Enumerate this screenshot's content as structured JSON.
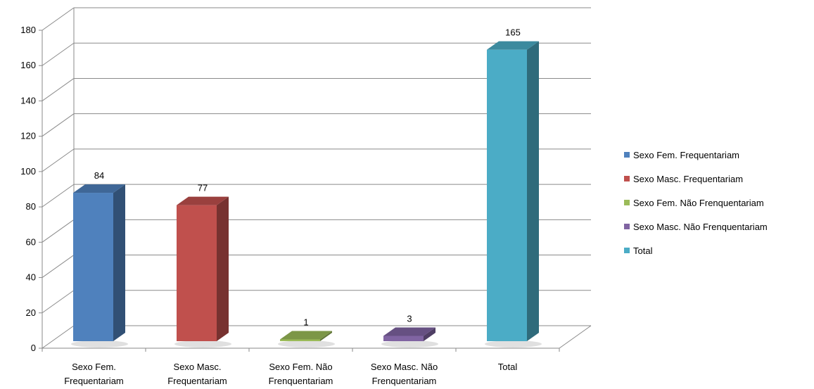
{
  "chart_data": {
    "type": "bar",
    "title": "",
    "xlabel": "",
    "ylabel": "",
    "ylim": [
      0,
      180
    ],
    "yticks": [
      0,
      20,
      40,
      60,
      80,
      100,
      120,
      140,
      160,
      180
    ],
    "categories": [
      [
        "Sexo Fem.",
        "Frequentariam"
      ],
      [
        "Sexo Masc.",
        "Frequentariam"
      ],
      [
        "Sexo Fem. Não",
        "Frenquentariam"
      ],
      [
        "Sexo Masc. Não",
        "Frenquentariam"
      ],
      [
        "Total"
      ]
    ],
    "values": [
      84,
      77,
      1,
      3,
      165
    ],
    "colors": [
      "#4F81BD",
      "#C0504D",
      "#9BBB59",
      "#8064A2",
      "#4BACC6"
    ],
    "legend_position": "right",
    "grid": true,
    "three_d": true
  },
  "legend": {
    "items": [
      {
        "label": "Sexo Fem. Frequentariam",
        "color": "#4F81BD"
      },
      {
        "label": "Sexo Masc. Frequentariam",
        "color": "#C0504D"
      },
      {
        "label": "Sexo Fem. Não Frenquentariam",
        "color": "#9BBB59"
      },
      {
        "label": "Sexo Masc. Não Frenquentariam",
        "color": "#8064A2"
      },
      {
        "label": "Total",
        "color": "#4BACC6"
      }
    ]
  }
}
